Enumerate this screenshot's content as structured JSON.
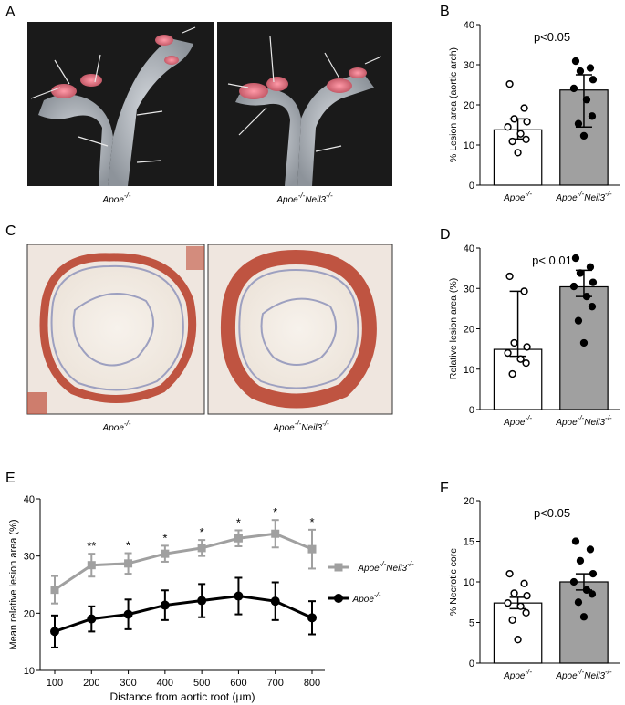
{
  "panels": {
    "A": {
      "letter": "A",
      "labels": [
        "Apoe",
        "Apoe",
        "Neil3"
      ]
    },
    "C": {
      "letter": "C",
      "labels": [
        "Apoe",
        "Apoe",
        "Neil3"
      ]
    }
  },
  "sup": "-/-",
  "colors": {
    "black": "#000000",
    "grey": "#a0a0a0",
    "bar_grey": "#a0a0a0",
    "tissue_bg": "#efe6df",
    "photo_bg": "#1a1a1a",
    "vessel": "#b9bec4",
    "lesion": "#d9797f"
  },
  "chart_data": [
    {
      "id": "B",
      "letter": "B",
      "type": "bar",
      "categories": [
        "Apoe",
        "Apoe Neil3"
      ],
      "values": [
        13.8,
        23.7
      ],
      "errors": [
        [
          11.5,
          16.5
        ],
        [
          14.5,
          27.5
        ]
      ],
      "points": [
        [
          25.2,
          19.2,
          16.5,
          15.8,
          14.5,
          12.8,
          11.4,
          10.9,
          8.1
        ],
        [
          30.9,
          29.2,
          28.4,
          26.3,
          24.1,
          21.3,
          17.2,
          15.3,
          12.3
        ]
      ],
      "fills": [
        "white",
        "grey"
      ],
      "markers": [
        "open",
        "filled"
      ],
      "ylabel": "% Lesion area (aortic arch)",
      "ylim": [
        0,
        40
      ],
      "yticks": [
        0,
        10,
        20,
        30,
        40
      ],
      "annotation": "p<0.05"
    },
    {
      "id": "D",
      "letter": "D",
      "type": "bar",
      "categories": [
        "Apoe",
        "Apoe Neil3"
      ],
      "values": [
        14.9,
        30.4
      ],
      "errors": [
        [
          13.2,
          29.3
        ],
        [
          28.0,
          34.5
        ]
      ],
      "points": [
        [
          33.0,
          29.3,
          16.5,
          15.5,
          14.0,
          12.5,
          11.5,
          8.8
        ],
        [
          37.5,
          35.3,
          33.8,
          31.5,
          30.5,
          28.0,
          25.5,
          22.0,
          16.5
        ]
      ],
      "fills": [
        "white",
        "grey"
      ],
      "markers": [
        "open",
        "filled"
      ],
      "ylabel": "Relative lesion area (%)",
      "ylim": [
        0,
        40
      ],
      "yticks": [
        0,
        10,
        20,
        30,
        40
      ],
      "annotation": "p< 0.01"
    },
    {
      "id": "E",
      "letter": "E",
      "type": "line",
      "x": [
        100,
        200,
        300,
        400,
        500,
        600,
        700,
        800
      ],
      "series": [
        {
          "name": "Apoe Neil3",
          "marker": "square",
          "color": "#a0a0a0",
          "values": [
            24.1,
            28.4,
            28.7,
            30.4,
            31.4,
            33.1,
            33.9,
            31.2
          ],
          "err": [
            2.4,
            2.0,
            1.8,
            1.4,
            1.4,
            1.4,
            2.4,
            3.4
          ]
        },
        {
          "name": "Apoe",
          "marker": "circle",
          "color": "#000000",
          "values": [
            16.8,
            19.0,
            19.8,
            21.4,
            22.2,
            23.0,
            22.1,
            19.2
          ],
          "err": [
            2.8,
            2.2,
            2.6,
            2.6,
            2.9,
            3.2,
            3.3,
            2.9
          ]
        }
      ],
      "stars": [
        "",
        "**",
        "*",
        "*",
        "*",
        "*",
        "*",
        "*"
      ],
      "xlabel": "Distance from aortic root (μm)",
      "ylabel": "Mean relative lesion area (%)",
      "ylim": [
        10,
        40
      ],
      "yticks": [
        10,
        20,
        30,
        40
      ]
    },
    {
      "id": "F",
      "letter": "F",
      "type": "bar",
      "categories": [
        "Apoe",
        "Apoe Neil3"
      ],
      "values": [
        7.4,
        10.0
      ],
      "errors": [
        [
          6.7,
          8.1
        ],
        [
          9.0,
          11.0
        ]
      ],
      "points": [
        [
          11.0,
          9.8,
          8.6,
          8.3,
          7.4,
          7.0,
          6.2,
          5.3,
          2.9
        ],
        [
          15.0,
          14.0,
          12.6,
          11.0,
          10.0,
          9.0,
          8.5,
          7.5,
          5.7
        ]
      ],
      "fills": [
        "white",
        "grey"
      ],
      "markers": [
        "open",
        "filled"
      ],
      "ylabel": "% Necrotic core",
      "ylim": [
        0,
        20
      ],
      "yticks": [
        0,
        5,
        10,
        15,
        20
      ],
      "annotation": "p<0.05"
    }
  ]
}
